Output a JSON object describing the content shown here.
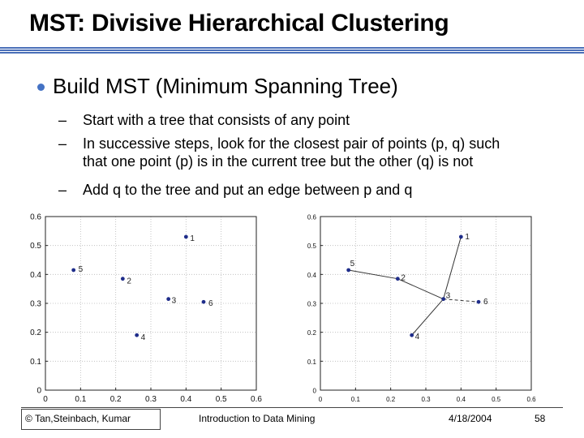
{
  "title": "MST: Divisive Hierarchical Clustering",
  "bullet": "Build MST (Minimum Spanning Tree)",
  "subbullets": [
    "Start with a tree that consists of any point",
    "In successive steps, look for the closest pair of points (p, q)  such",
    "that one point (p) is in the current tree but the other (q) is not",
    "Add q to the tree and put an edge between p and q"
  ],
  "dash": "–",
  "chart_data": [
    {
      "type": "scatter",
      "xlim": [
        0,
        0.6
      ],
      "ylim": [
        0,
        0.6
      ],
      "xticks": [
        "0",
        "0.1",
        "0.2",
        "0.3",
        "0.4",
        "0.5",
        "0.6"
      ],
      "yticks": [
        "0",
        "0.1",
        "0.2",
        "0.3",
        "0.4",
        "0.5",
        "0.6"
      ],
      "points": [
        {
          "label": "1",
          "x": 0.4,
          "y": 0.53
        },
        {
          "label": "2",
          "x": 0.22,
          "y": 0.385
        },
        {
          "label": "3",
          "x": 0.35,
          "y": 0.315
        },
        {
          "label": "4",
          "x": 0.26,
          "y": 0.19
        },
        {
          "label": "5",
          "x": 0.08,
          "y": 0.415
        },
        {
          "label": "6",
          "x": 0.45,
          "y": 0.305
        }
      ],
      "edges": []
    },
    {
      "type": "scatter",
      "xlim": [
        0,
        0.6
      ],
      "ylim": [
        0,
        0.6
      ],
      "xticks": [
        "0",
        "0.1",
        "0.2",
        "0.3",
        "0.4",
        "0.5",
        "0.6"
      ],
      "yticks": [
        "0",
        "0.1",
        "0.2",
        "0.3",
        "0.4",
        "0.5",
        "0.6"
      ],
      "points": [
        {
          "label": "1",
          "x": 0.4,
          "y": 0.53
        },
        {
          "label": "2",
          "x": 0.22,
          "y": 0.385
        },
        {
          "label": "3",
          "x": 0.35,
          "y": 0.315
        },
        {
          "label": "4",
          "x": 0.26,
          "y": 0.19
        },
        {
          "label": "5",
          "x": 0.08,
          "y": 0.415
        },
        {
          "label": "6",
          "x": 0.45,
          "y": 0.305
        }
      ],
      "edges": [
        [
          "1",
          "3"
        ],
        [
          "5",
          "2"
        ],
        [
          "2",
          "3"
        ],
        [
          "3",
          "6"
        ],
        [
          "3",
          "4"
        ]
      ]
    }
  ],
  "footer": {
    "copyright": "© Tan,Steinbach, Kumar",
    "course": "Introduction to Data Mining",
    "date": "4/18/2004",
    "page": "58"
  },
  "colors": {
    "accent": "#4472c4",
    "point": "#1f2d8a",
    "rule": "#4a6fb8"
  }
}
